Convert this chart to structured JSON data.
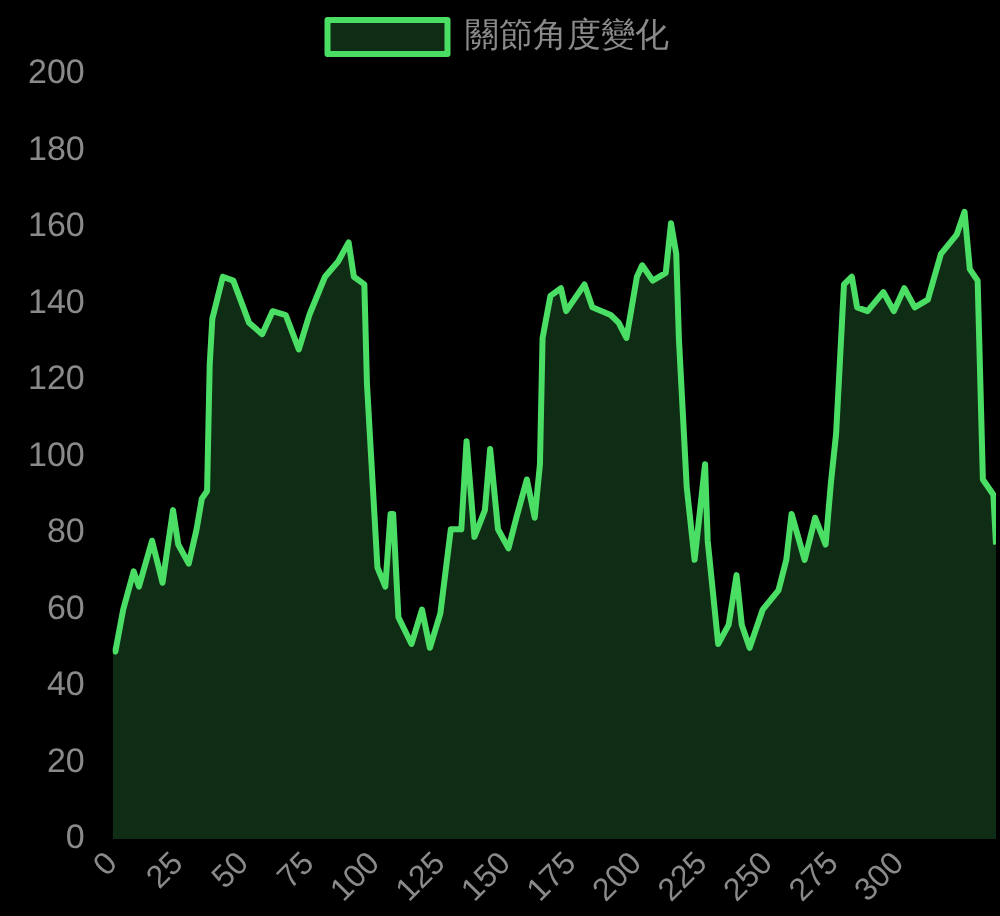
{
  "chart_data": {
    "type": "area",
    "x": [
      0,
      1,
      4,
      8,
      10,
      15,
      19,
      23,
      25,
      29,
      32,
      34,
      36,
      37,
      38,
      42,
      46,
      52,
      57,
      61,
      66,
      71,
      75,
      81,
      86,
      90,
      92,
      96,
      97,
      101,
      104,
      106,
      107,
      109,
      114,
      118,
      121,
      125,
      129,
      133,
      135,
      138,
      142,
      144,
      147,
      151,
      154,
      158,
      161,
      163,
      164,
      167,
      171,
      173,
      180,
      183,
      190,
      193,
      196,
      200,
      202,
      206,
      211,
      213,
      215,
      216,
      219,
      222,
      226,
      227,
      231,
      235,
      238,
      240,
      243,
      248,
      254,
      257,
      259,
      264,
      268,
      272,
      274,
      276,
      279,
      282,
      284,
      288,
      294,
      298,
      302,
      306,
      311,
      316,
      322,
      325,
      327,
      330,
      332,
      336,
      337
    ],
    "series": [
      {
        "name": "關節角度變化",
        "color": "#4ade64",
        "values": [
          50,
          49,
          60,
          70,
          66,
          78,
          67,
          86,
          77,
          72,
          81,
          89,
          91,
          124,
          136,
          147,
          146,
          135,
          132,
          138,
          137,
          128,
          137,
          147,
          151,
          156,
          147,
          145,
          119,
          71,
          66,
          85,
          85,
          58,
          51,
          60,
          50,
          59,
          81,
          81,
          104,
          79,
          86,
          102,
          81,
          76,
          84,
          94,
          84,
          98,
          131,
          142,
          144,
          138,
          145,
          139,
          137,
          135,
          131,
          147,
          150,
          146,
          148,
          161,
          153,
          131,
          92,
          73,
          98,
          78,
          51,
          56,
          69,
          56,
          50,
          60,
          65,
          73,
          85,
          73,
          84,
          77,
          93,
          106,
          145,
          147,
          139,
          138,
          143,
          138,
          144,
          139,
          141,
          153,
          158,
          164,
          149,
          146,
          94,
          90,
          77
        ]
      }
    ],
    "xlim": [
      0,
      337
    ],
    "xticks": [
      0,
      25,
      50,
      75,
      100,
      125,
      150,
      175,
      200,
      225,
      250,
      275,
      300
    ],
    "ylim": [
      0,
      200
    ],
    "yticks": [
      0,
      20,
      40,
      60,
      80,
      100,
      120,
      140,
      160,
      180,
      200
    ],
    "legend": "top"
  }
}
